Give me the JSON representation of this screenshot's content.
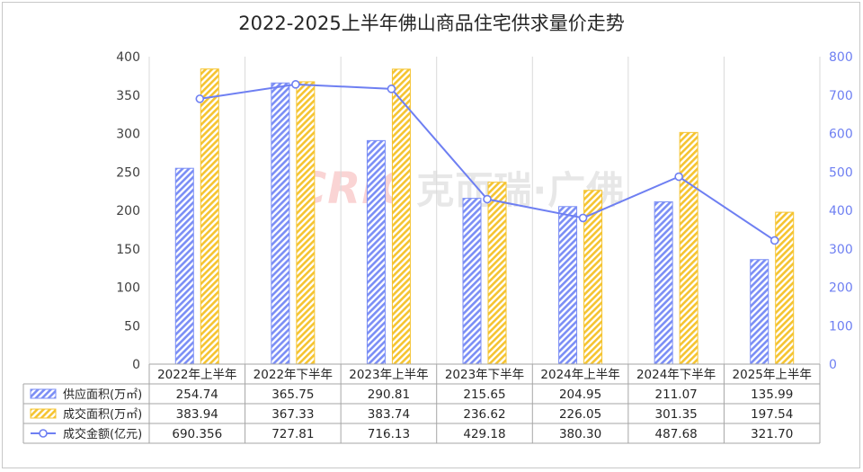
{
  "title": "2022-2025上半年佛山商品住宅供求量价走势",
  "watermark": {
    "latin": "CRIC",
    "cn": "克而瑞·广佛"
  },
  "colors": {
    "supply": "#7b8ef5",
    "deal": "#f5c431",
    "amount": "#6e7ff2",
    "right_axis": "#6e7ff2",
    "grid": "#d9d9d9"
  },
  "chart_data": {
    "type": "bar",
    "title": "2022-2025上半年佛山商品住宅供求量价走势",
    "categories": [
      "2022年上半年",
      "2022年下半年",
      "2023年上半年",
      "2023年下半年",
      "2024年上半年",
      "2024年下半年",
      "2025年上半年"
    ],
    "series": [
      {
        "name": "供应面积(万㎡)",
        "type": "bar",
        "axis": "left",
        "pattern": "hatched",
        "values": [
          254.74,
          365.75,
          290.81,
          215.65,
          204.95,
          211.07,
          135.99
        ],
        "labels": [
          "254.74",
          "365.75",
          "290.81",
          "215.65",
          "204.95",
          "211.07",
          "135.99"
        ]
      },
      {
        "name": "成交面积(万㎡)",
        "type": "bar",
        "axis": "left",
        "pattern": "hatched",
        "values": [
          383.94,
          367.33,
          383.74,
          236.62,
          226.05,
          301.35,
          197.54
        ],
        "labels": [
          "383.94",
          "367.33",
          "383.74",
          "236.62",
          "226.05",
          "301.35",
          "197.54"
        ]
      },
      {
        "name": "成交金额(亿元)",
        "type": "line",
        "axis": "right",
        "values": [
          690.356,
          727.81,
          716.13,
          429.18,
          380.3,
          487.68,
          321.7
        ],
        "labels": [
          "690.356",
          "727.81",
          "716.13",
          "429.18",
          "380.30",
          "487.68",
          "321.70"
        ]
      }
    ],
    "y_left": {
      "min": 0,
      "max": 400,
      "ticks": [
        0,
        50,
        100,
        150,
        200,
        250,
        300,
        350,
        400
      ]
    },
    "y_right": {
      "min": 0,
      "max": 800,
      "ticks": [
        0,
        100,
        200,
        300,
        400,
        500,
        600,
        700,
        800
      ]
    },
    "grid": true,
    "legend": "data-table"
  }
}
